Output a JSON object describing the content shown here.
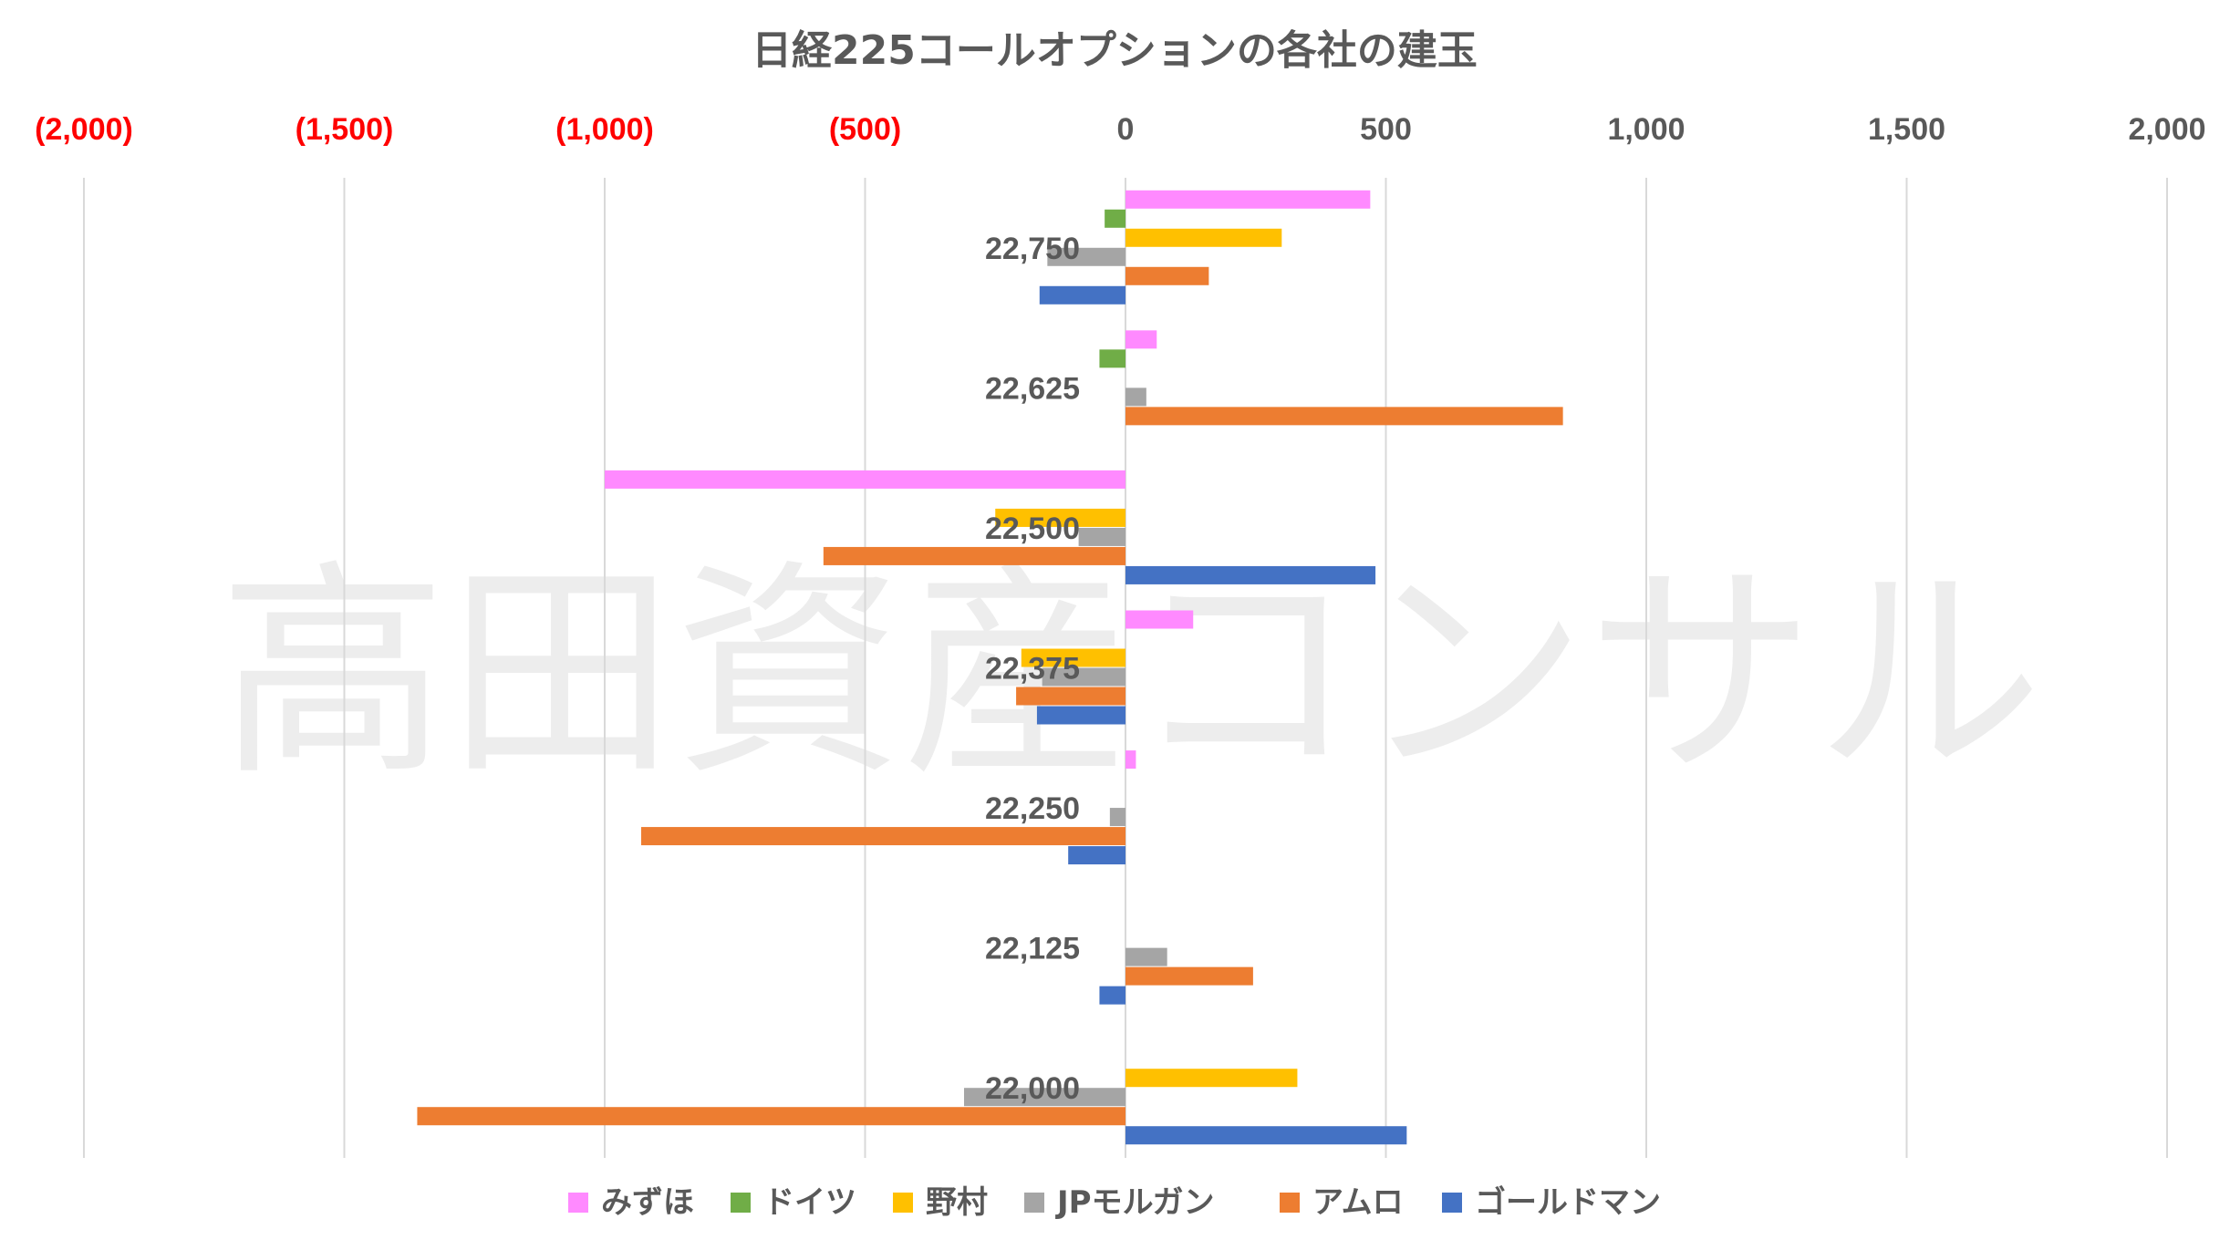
{
  "chart_data": {
    "type": "bar",
    "orientation": "horizontal",
    "title": "日経225コールオプションの各社の建玉",
    "watermark": "高田資産コンサル",
    "xlim": [
      -2000,
      2000
    ],
    "x_ticks": [
      {
        "value": -2000,
        "label": "(2,000)"
      },
      {
        "value": -1500,
        "label": "(1,500)"
      },
      {
        "value": -1000,
        "label": "(1,000)"
      },
      {
        "value": -500,
        "label": "(500)"
      },
      {
        "value": 0,
        "label": "0"
      },
      {
        "value": 500,
        "label": "500"
      },
      {
        "value": 1000,
        "label": "1,000"
      },
      {
        "value": 1500,
        "label": "1,500"
      },
      {
        "value": 2000,
        "label": "2,000"
      }
    ],
    "negative_tick_color": "#FF0000",
    "positive_tick_color": "#595959",
    "grid": "vertical",
    "legend_position": "bottom",
    "categories": [
      "22,750",
      "22,625",
      "22,500",
      "22,375",
      "22,250",
      "22,125",
      "22,000"
    ],
    "series": [
      {
        "name": "みずほ",
        "color": "#FF8AFF",
        "values": [
          470,
          60,
          -1000,
          130,
          20,
          0,
          0
        ]
      },
      {
        "name": "ドイツ",
        "color": "#70AD47",
        "values": [
          -40,
          -50,
          0,
          0,
          0,
          0,
          0
        ]
      },
      {
        "name": "野村",
        "color": "#FFC000",
        "values": [
          300,
          0,
          -250,
          -200,
          0,
          0,
          330
        ]
      },
      {
        "name": "JPモルガン",
        "color": "#A5A5A5",
        "values": [
          -150,
          40,
          -90,
          -160,
          -30,
          80,
          -310
        ]
      },
      {
        "name": "アムロ",
        "color": "#ED7D31",
        "values": [
          160,
          840,
          -580,
          -210,
          -930,
          245,
          -1360
        ]
      },
      {
        "name": "ゴールドマン",
        "color": "#4472C4",
        "values": [
          -165,
          0,
          480,
          -170,
          -110,
          -50,
          540
        ]
      }
    ]
  }
}
